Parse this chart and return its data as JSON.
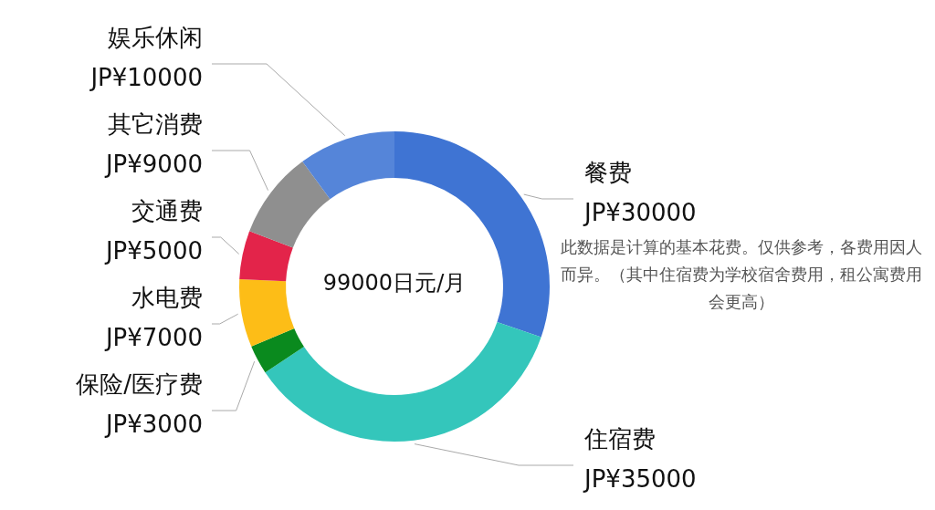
{
  "chart_data": {
    "type": "donut",
    "categories": [
      "餐费",
      "住宿费",
      "保险/医疗费",
      "水电费",
      "交通费",
      "其它消费",
      "娱乐休闲"
    ],
    "values": [
      30000,
      35000,
      3000,
      7000,
      5000,
      9000,
      10000
    ],
    "colors": [
      "#3f74d3",
      "#34c6bb",
      "#0a8a1e",
      "#fdbd17",
      "#e3244a",
      "#8f8f8f",
      "#5585d9"
    ],
    "value_labels": [
      "JP¥30000",
      "JP¥35000",
      "JP¥3000",
      "JP¥7000",
      "JP¥5000",
      "JP¥9000",
      "JP¥10000"
    ],
    "annotations": [
      "99000日元/月",
      "此数据是计算的基本花费。仅供参考，各费用因人而异。（其中住宿费为学校宿舍费用，租公寓费用会更高）"
    ]
  }
}
